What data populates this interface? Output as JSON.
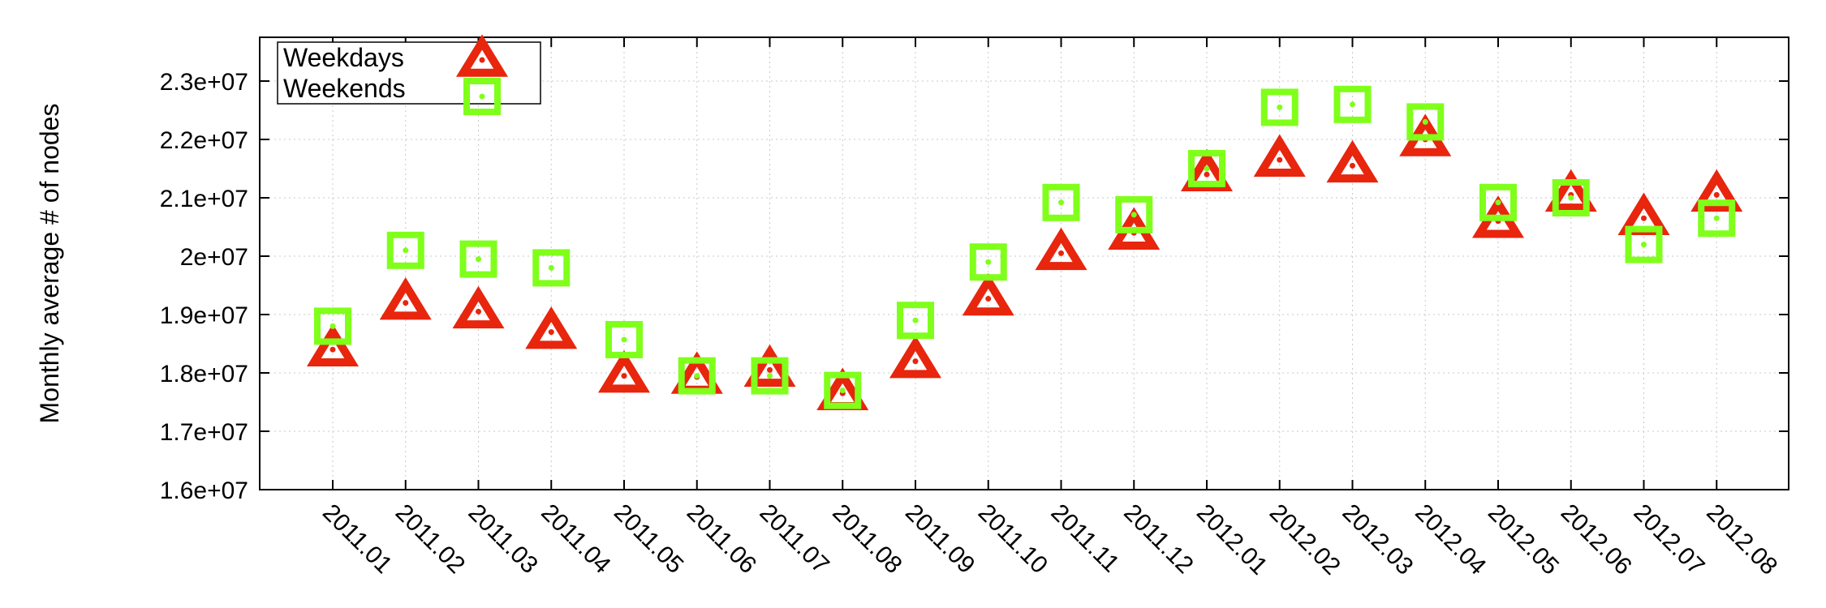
{
  "chart_data": {
    "type": "scatter",
    "ylabel": "Monthly average # of nodes",
    "xlabel": "",
    "categories": [
      "2011.01",
      "2011.02",
      "2011.03",
      "2011.04",
      "2011.05",
      "2011.06",
      "2011.07",
      "2011.08",
      "2011.09",
      "2011.10",
      "2011.11",
      "2011.12",
      "2012.01",
      "2012.02",
      "2012.03",
      "2012.04",
      "2012.05",
      "2012.06",
      "2012.07",
      "2012.08"
    ],
    "yticks": [
      "1.6e+07",
      "1.7e+07",
      "1.8e+07",
      "1.9e+07",
      "2e+07",
      "2.1e+07",
      "2.2e+07",
      "2.3e+07"
    ],
    "ylim": [
      16000000,
      23750000
    ],
    "grid": true,
    "legend_position": "top-left",
    "series": [
      {
        "name": "Weekdays",
        "marker": "triangle",
        "color": "#e8250d",
        "values": [
          18400000,
          19200000,
          19050000,
          18700000,
          17950000,
          17930000,
          18050000,
          17650000,
          18200000,
          19270000,
          20050000,
          20400000,
          21400000,
          21650000,
          21550000,
          22000000,
          20600000,
          21050000,
          20650000,
          21050000
        ]
      },
      {
        "name": "Weekends",
        "marker": "square",
        "color": "#7fff1a",
        "values": [
          18800000,
          20100000,
          19950000,
          19800000,
          18570000,
          17950000,
          17950000,
          17700000,
          18900000,
          19900000,
          20920000,
          20710000,
          21500000,
          22550000,
          22600000,
          22300000,
          20920000,
          21000000,
          20200000,
          20650000
        ]
      }
    ]
  }
}
